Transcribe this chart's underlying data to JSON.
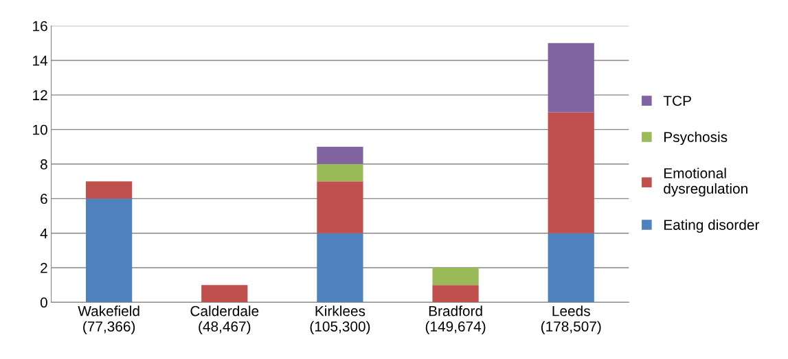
{
  "chart_data": {
    "type": "bar",
    "stacked": true,
    "categories": [
      "Wakefield\n(77,366)",
      "Calderdale\n(48,467)",
      "Kirklees\n(105,300)",
      "Bradford\n(149,674)",
      "Leeds\n(178,507)"
    ],
    "series": [
      {
        "name": "Eating disorder",
        "color": "#4f81bd",
        "values": [
          6,
          0,
          4,
          0,
          4
        ]
      },
      {
        "name": "Emotional\ndysregulation",
        "color": "#c0504d",
        "values": [
          1,
          1,
          3,
          1,
          7
        ]
      },
      {
        "name": "Psychosis",
        "color": "#9bbb59",
        "values": [
          0,
          0,
          1,
          1,
          0
        ]
      },
      {
        "name": "TCP",
        "color": "#8064a2",
        "values": [
          0,
          0,
          1,
          0,
          4
        ]
      }
    ],
    "ylim": [
      0,
      16
    ],
    "yticks": [
      0,
      2,
      4,
      6,
      8,
      10,
      12,
      14,
      16
    ],
    "grid": "y",
    "legend": "right"
  }
}
